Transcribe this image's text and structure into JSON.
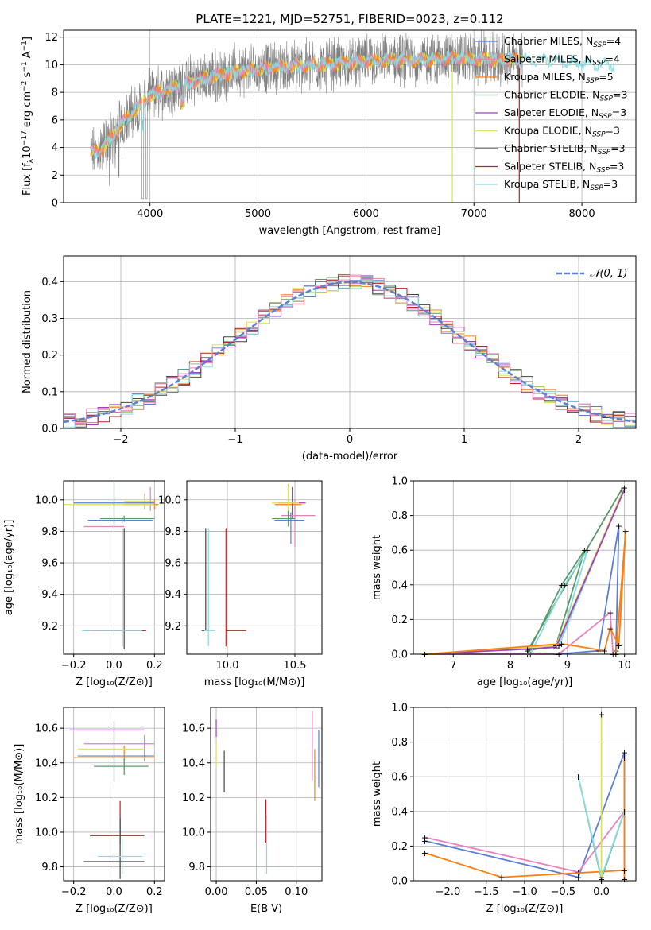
{
  "title": "PLATE=1221, MJD=52751, FIBERID=0023, z=0.112",
  "colors": {
    "grid": "#b0b0b0",
    "s1": "#5b7fd6",
    "s2": "#ff7f0e",
    "s3": "#5a9a6a",
    "s4": "#a040c0",
    "s5": "#dde05a",
    "s6": "#444444",
    "s7": "#c02020",
    "s8": "#88dddd",
    "s9": "#e880c0",
    "normal": "#5b7fd6"
  },
  "legend": [
    {
      "label": "Chabrier MILES, N",
      "sub": "SSP",
      "tail": "=4",
      "color": "#5b7fd6"
    },
    {
      "label": "Salpeter MILES, N",
      "sub": "SSP",
      "tail": "=4",
      "color": "#e880c0"
    },
    {
      "label": "Kroupa MILES, N",
      "sub": "SSP",
      "tail": "=5",
      "color": "#ff7f0e"
    },
    {
      "label": "Chabrier ELODIE, N",
      "sub": "SSP",
      "tail": "=3",
      "color": "#5a9a6a"
    },
    {
      "label": "Salpeter ELODIE, N",
      "sub": "SSP",
      "tail": "=3",
      "color": "#a040c0"
    },
    {
      "label": "Kroupa ELODIE, N",
      "sub": "SSP",
      "tail": "=3",
      "color": "#dde05a"
    },
    {
      "label": "Chabrier STELIB, N",
      "sub": "SSP",
      "tail": "=3",
      "color": "#444444"
    },
    {
      "label": "Salpeter STELIB, N",
      "sub": "SSP",
      "tail": "=3",
      "color": "#c02020"
    },
    {
      "label": "Kroupa STELIB, N",
      "sub": "SSP",
      "tail": "=3",
      "color": "#88dddd"
    }
  ],
  "chart_data": [
    {
      "type": "line",
      "title": "PLATE=1221, MJD=52751, FIBERID=0023, z=0.112",
      "xlabel": "wavelength [Angstrom, rest frame]",
      "ylabel": "Flux [fλ10⁻¹⁷ erg cm⁻² s⁻¹ A⁻¹]",
      "xlim": [
        3200,
        8500
      ],
      "ylim": [
        0,
        12.5
      ],
      "xticks": [
        "4000",
        "5000",
        "6000",
        "7000",
        "8000"
      ],
      "yticks": [
        "0",
        "2",
        "4",
        "6",
        "8",
        "10",
        "12"
      ],
      "continuum_x": [
        3450,
        3550,
        3650,
        3750,
        3900,
        4000,
        4200,
        4500,
        4800,
        5000,
        5300,
        5600,
        5900,
        6200,
        6500,
        6800,
        7100,
        7400,
        7700,
        8000,
        8300
      ],
      "continuum_y": [
        3.6,
        3.9,
        4.8,
        5.8,
        7.0,
        7.8,
        8.3,
        9.0,
        9.5,
        9.7,
        9.9,
        10.0,
        10.2,
        10.3,
        10.3,
        10.5,
        10.4,
        10.3,
        10.4,
        10.1,
        10.0
      ]
    },
    {
      "type": "bar",
      "xlabel": "(data-model)/error",
      "ylabel": "Normed distribution",
      "xlim": [
        -2.5,
        2.5
      ],
      "ylim": [
        0,
        0.47
      ],
      "xticks": [
        "−2",
        "−1",
        "0",
        "1",
        "2"
      ],
      "yticks": [
        "0.0",
        "0.1",
        "0.2",
        "0.3",
        "0.4"
      ],
      "legend": "𝒩(0, 1)",
      "bin_width": 0.1
    },
    {
      "type": "scatter",
      "xlabel": "Z [log₁₀(Z/Z⊙)]",
      "ylabel": "age  [log₁₀(age/yr)]",
      "xlim": [
        -0.25,
        0.25
      ],
      "ylim": [
        9.02,
        10.12
      ],
      "xticks": [
        "−0.2",
        "0.0",
        "0.2"
      ],
      "yticks": [
        "9.2",
        "9.4",
        "9.6",
        "9.8",
        "10.0"
      ]
    },
    {
      "type": "scatter",
      "xlabel": "mass [log₁₀(M/M⊙)]",
      "xlim": [
        9.7,
        10.7
      ],
      "ylim": [
        9.02,
        10.12
      ],
      "xticks": [
        "10.0",
        "10.5"
      ],
      "yticks": [
        "9.2",
        "9.4",
        "9.6",
        "9.8",
        "10.0"
      ]
    },
    {
      "type": "line",
      "xlabel": "age  [log₁₀(age/yr)]",
      "ylabel": "mass weight",
      "xlim": [
        6.3,
        10.2
      ],
      "ylim": [
        0,
        1
      ],
      "xticks": [
        "7",
        "8",
        "9",
        "10"
      ],
      "yticks": [
        "0.0",
        "0.2",
        "0.4",
        "0.6",
        "0.8",
        "1.0"
      ]
    },
    {
      "type": "scatter",
      "xlabel": "Z [log₁₀(Z/Z⊙)]",
      "ylabel": "mass [log₁₀(M/M⊙)]",
      "xlim": [
        -0.25,
        0.25
      ],
      "ylim": [
        9.72,
        10.72
      ],
      "xticks": [
        "−0.2",
        "0.0",
        "0.2"
      ],
      "yticks": [
        "9.8",
        "10.0",
        "10.2",
        "10.4",
        "10.6"
      ]
    },
    {
      "type": "scatter",
      "xlabel": "E(B-V)",
      "xlim": [
        -0.007,
        0.132
      ],
      "ylim": [
        9.72,
        10.72
      ],
      "xticks": [
        "0.00",
        "0.05",
        "0.10"
      ],
      "yticks": [
        "9.8",
        "10.0",
        "10.2",
        "10.4",
        "10.6"
      ]
    },
    {
      "type": "line",
      "xlabel": "Z [log₁₀(Z/Z⊙)]",
      "ylabel": "mass weight",
      "xlim": [
        -2.45,
        0.45
      ],
      "ylim": [
        0,
        1
      ],
      "xticks": [
        "−2.0",
        "−1.5",
        "−1.0",
        "−0.5",
        "0.0"
      ],
      "yticks": [
        "0.0",
        "0.2",
        "0.4",
        "0.6",
        "0.8",
        "1.0"
      ]
    }
  ]
}
